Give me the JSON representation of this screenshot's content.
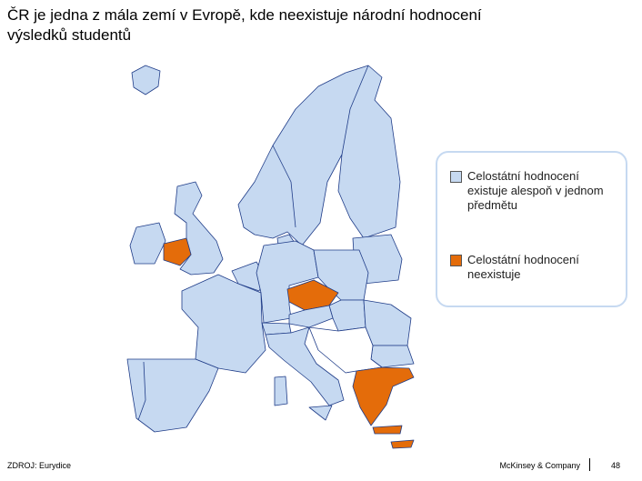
{
  "header": {
    "title_lines": [
      "ČR je jedna z mála zemí v Evropě, kde neexistuje národní hodnocení",
      "výsledků studentů"
    ]
  },
  "legend": {
    "items": [
      {
        "label": "Celostátní hodnocení existuje alespoň v jednom předmětu",
        "color": "#c6d9f1"
      },
      {
        "label": "Celostátní hodnocení neexistuje",
        "color": "#e46c0a"
      }
    ]
  },
  "source": "ZDROJ: Eurydice",
  "footer": {
    "company": "McKinsey & Company",
    "page": "48"
  }
}
